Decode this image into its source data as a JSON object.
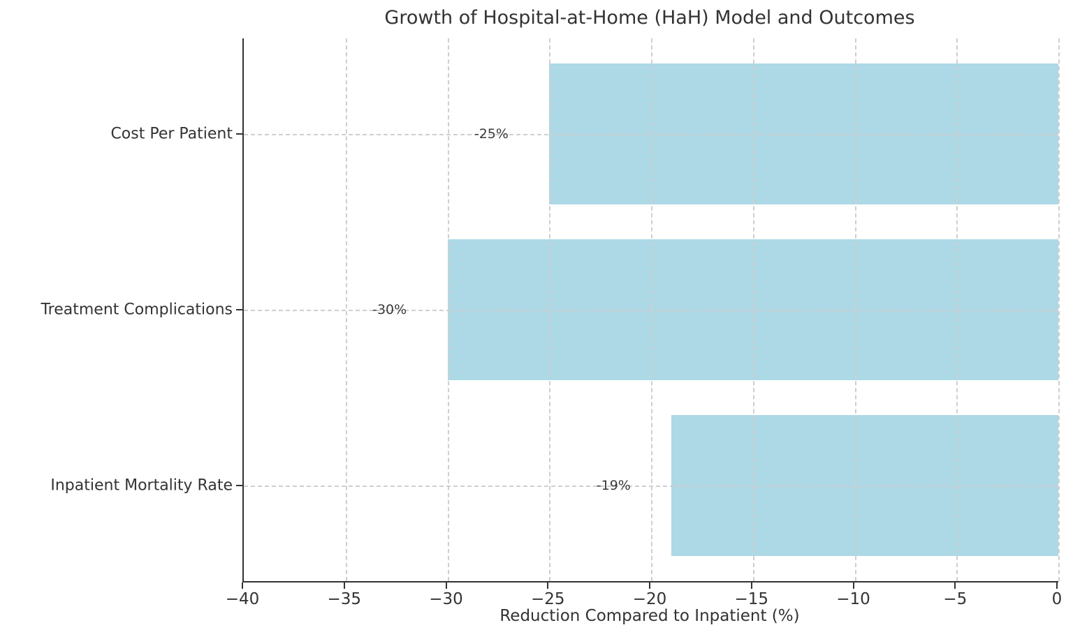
{
  "figure": {
    "title": "Growth of Hospital-at-Home (HaH) Model and Outcomes",
    "xlabel": "Reduction Compared to Inpatient (%)"
  },
  "chart_data": {
    "type": "bar",
    "orientation": "horizontal",
    "title": "Growth of Hospital-at-Home (HaH) Model and Outcomes",
    "xlabel": "Reduction Compared to Inpatient (%)",
    "ylabel": "",
    "categories": [
      "Cost Per Patient",
      "Treatment Complications",
      "Inpatient Mortality Rate"
    ],
    "values": [
      -25,
      -30,
      -19
    ],
    "bar_labels": [
      "-25%",
      "-30%",
      "-19%"
    ],
    "xlim": [
      -40,
      0
    ],
    "xticks": [
      -40,
      -35,
      -30,
      -25,
      -20,
      -15,
      -10,
      -5,
      0
    ],
    "xtick_labels": [
      "−40",
      "−35",
      "−30",
      "−25",
      "−20",
      "−15",
      "−10",
      "−5",
      "0"
    ],
    "bar_color": "#add8e6",
    "grid": true,
    "grid_style": "dashed",
    "grid_color": "#cfcfcf",
    "text_color": "#333333",
    "background_color": "#ffffff",
    "legend": null
  }
}
